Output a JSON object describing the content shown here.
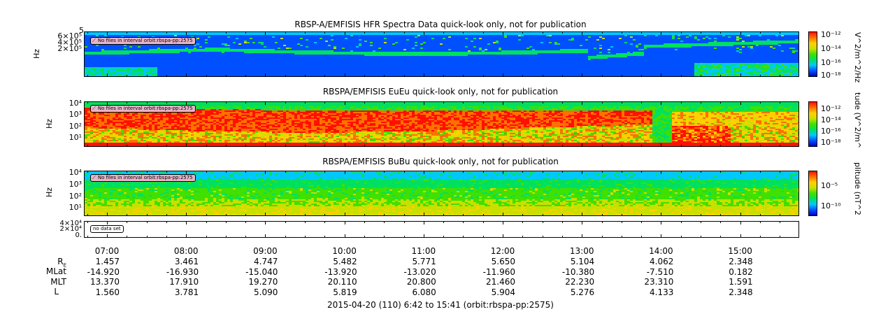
{
  "panels": [
    {
      "title": "RBSP-A/EMFISIS  HFR Spectra Data quick-look only, not for publication",
      "ylabel": "Hz",
      "yticks": [
        "6×10⁵",
        "5",
        "4×10⁵",
        "2×10⁵"
      ],
      "badge": "No files in interval orbit:rbspa-pp:2575",
      "colorbar_ticks": [
        "10⁻¹²",
        "10⁻¹⁴",
        "10⁻¹⁶",
        "10⁻¹⁸"
      ],
      "colorbar_label": "V^2/m^2/Hz"
    },
    {
      "title": "RBSPA/EMFISIS  EuEu quick-look only, not for publication",
      "ylabel": "Hz",
      "yticks": [
        "10⁴",
        "10³",
        "10²",
        "10¹"
      ],
      "badge": "No files in interval orbit:rbspa-pp:2575",
      "colorbar_ticks": [
        "10⁻¹²",
        "10⁻¹⁴",
        "10⁻¹⁶",
        "10⁻¹⁸"
      ],
      "colorbar_label": "tude (V^2/m^"
    },
    {
      "title": "RBSPA/EMFISIS  BuBu quick-look only, not for publication",
      "ylabel": "Hz",
      "yticks": [
        "10⁴",
        "10³",
        "10²",
        "10¹"
      ],
      "badge": "No files in interval orbit:rbspa-pp:2575",
      "colorbar_ticks": [
        "10⁻⁵",
        "10⁻¹⁰"
      ],
      "colorbar_label": "plitude (nT^2"
    },
    {
      "title": "",
      "yticks": [
        "4×10⁴",
        "2×10⁴",
        "0."
      ],
      "badge": "no data set"
    }
  ],
  "chart_data": {
    "type": "heatmap",
    "x_ticks": [
      "07:00",
      "08:00",
      "09:00",
      "10:00",
      "11:00",
      "12:00",
      "13:00",
      "14:00",
      "15:00"
    ],
    "ephemeris": {
      "labels": [
        "R",
        "MLat",
        "MLT",
        "L"
      ],
      "R_subscript": "E",
      "rows": [
        [
          "1.457",
          "3.461",
          "4.747",
          "5.482",
          "5.771",
          "5.650",
          "5.104",
          "4.062",
          "2.348"
        ],
        [
          "-14.920",
          "-16.930",
          "-15.040",
          "-13.920",
          "-13.020",
          "-11.960",
          "-10.380",
          "-7.510",
          "0.182"
        ],
        [
          "13.370",
          "17.910",
          "19.270",
          "20.110",
          "20.800",
          "21.460",
          "22.230",
          "23.310",
          "1.591"
        ],
        [
          "1.560",
          "3.781",
          "5.090",
          "5.819",
          "6.080",
          "5.904",
          "5.276",
          "4.133",
          "2.348"
        ]
      ]
    },
    "footer": "2015-04-20 (110) 6:42 to 15:41 (orbit:rbspa-pp:2575)",
    "colormap": [
      "#0000c8",
      "#0050ff",
      "#00c8ff",
      "#00e060",
      "#40e000",
      "#c8e000",
      "#ffd000",
      "#ff7000",
      "#ff1000"
    ]
  }
}
